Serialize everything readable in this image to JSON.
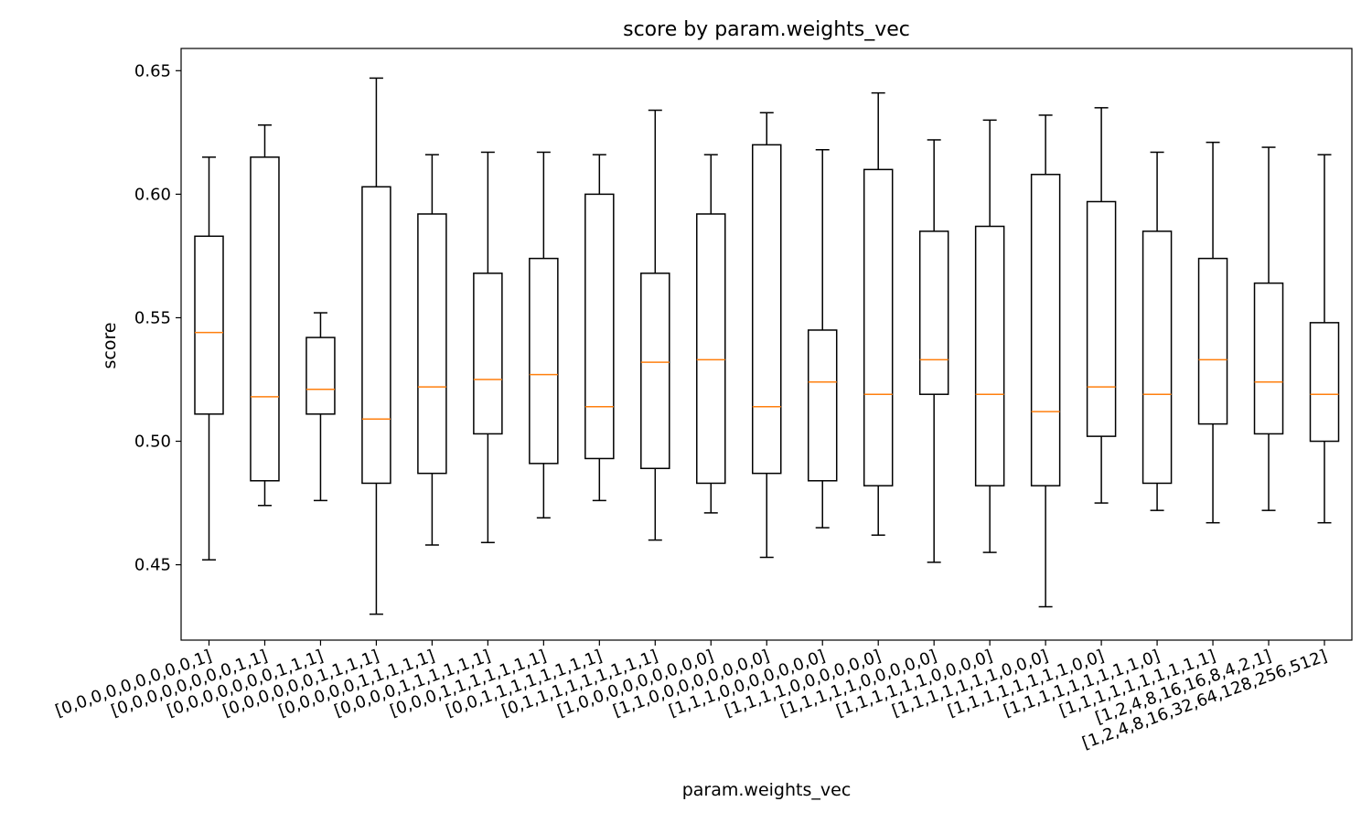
{
  "chart_data": {
    "type": "box",
    "title": "score by param.weights_vec",
    "xlabel": "param.weights_vec",
    "ylabel": "score",
    "ylim": [
      0.4195,
      0.659
    ],
    "yticks": [
      "0.45",
      "0.50",
      "0.55",
      "0.60",
      "0.65"
    ],
    "grid": false,
    "colors": {
      "box": "#000000",
      "median": "#ff7f0e"
    },
    "categories": [
      "[0,0,0,0,0,0,0,0,0,1]",
      "[0,0,0,0,0,0,0,0,1,1]",
      "[0,0,0,0,0,0,0,1,1,1]",
      "[0,0,0,0,0,0,1,1,1,1]",
      "[0,0,0,0,0,1,1,1,1,1]",
      "[0,0,0,0,1,1,1,1,1,1]",
      "[0,0,0,1,1,1,1,1,1,1]",
      "[0,0,1,1,1,1,1,1,1,1]",
      "[0,1,1,1,1,1,1,1,1,1]",
      "[1,0,0,0,0,0,0,0,0,0]",
      "[1,1,0,0,0,0,0,0,0,0]",
      "[1,1,1,0,0,0,0,0,0,0]",
      "[1,1,1,1,0,0,0,0,0,0]",
      "[1,1,1,1,1,0,0,0,0,0]",
      "[1,1,1,1,1,1,0,0,0,0]",
      "[1,1,1,1,1,1,1,0,0,0]",
      "[1,1,1,1,1,1,1,1,0,0]",
      "[1,1,1,1,1,1,1,1,1,0]",
      "[1,1,1,1,1,1,1,1,1,1]",
      "[1,2,4,8,16,16,8,4,2,1]",
      "[1,2,4,8,16,32,64,128,256,512]"
    ],
    "boxes": [
      {
        "min": 0.452,
        "q1": 0.511,
        "median": 0.544,
        "q3": 0.583,
        "max": 0.615
      },
      {
        "min": 0.474,
        "q1": 0.484,
        "median": 0.518,
        "q3": 0.615,
        "max": 0.628
      },
      {
        "min": 0.476,
        "q1": 0.511,
        "median": 0.521,
        "q3": 0.542,
        "max": 0.552
      },
      {
        "min": 0.43,
        "q1": 0.483,
        "median": 0.509,
        "q3": 0.603,
        "max": 0.647
      },
      {
        "min": 0.458,
        "q1": 0.487,
        "median": 0.522,
        "q3": 0.592,
        "max": 0.616
      },
      {
        "min": 0.459,
        "q1": 0.503,
        "median": 0.525,
        "q3": 0.568,
        "max": 0.617
      },
      {
        "min": 0.469,
        "q1": 0.491,
        "median": 0.527,
        "q3": 0.574,
        "max": 0.617
      },
      {
        "min": 0.476,
        "q1": 0.493,
        "median": 0.514,
        "q3": 0.6,
        "max": 0.616
      },
      {
        "min": 0.46,
        "q1": 0.489,
        "median": 0.532,
        "q3": 0.568,
        "max": 0.634
      },
      {
        "min": 0.471,
        "q1": 0.483,
        "median": 0.533,
        "q3": 0.592,
        "max": 0.616
      },
      {
        "min": 0.453,
        "q1": 0.487,
        "median": 0.514,
        "q3": 0.62,
        "max": 0.633
      },
      {
        "min": 0.465,
        "q1": 0.484,
        "median": 0.524,
        "q3": 0.545,
        "max": 0.618
      },
      {
        "min": 0.462,
        "q1": 0.482,
        "median": 0.519,
        "q3": 0.61,
        "max": 0.641
      },
      {
        "min": 0.451,
        "q1": 0.519,
        "median": 0.533,
        "q3": 0.585,
        "max": 0.622
      },
      {
        "min": 0.455,
        "q1": 0.482,
        "median": 0.519,
        "q3": 0.587,
        "max": 0.63
      },
      {
        "min": 0.433,
        "q1": 0.482,
        "median": 0.512,
        "q3": 0.608,
        "max": 0.632
      },
      {
        "min": 0.475,
        "q1": 0.502,
        "median": 0.522,
        "q3": 0.597,
        "max": 0.635
      },
      {
        "min": 0.472,
        "q1": 0.483,
        "median": 0.519,
        "q3": 0.585,
        "max": 0.617
      },
      {
        "min": 0.467,
        "q1": 0.507,
        "median": 0.533,
        "q3": 0.574,
        "max": 0.621
      },
      {
        "min": 0.472,
        "q1": 0.503,
        "median": 0.524,
        "q3": 0.564,
        "max": 0.619
      },
      {
        "min": 0.467,
        "q1": 0.5,
        "median": 0.519,
        "q3": 0.548,
        "max": 0.616
      }
    ]
  }
}
